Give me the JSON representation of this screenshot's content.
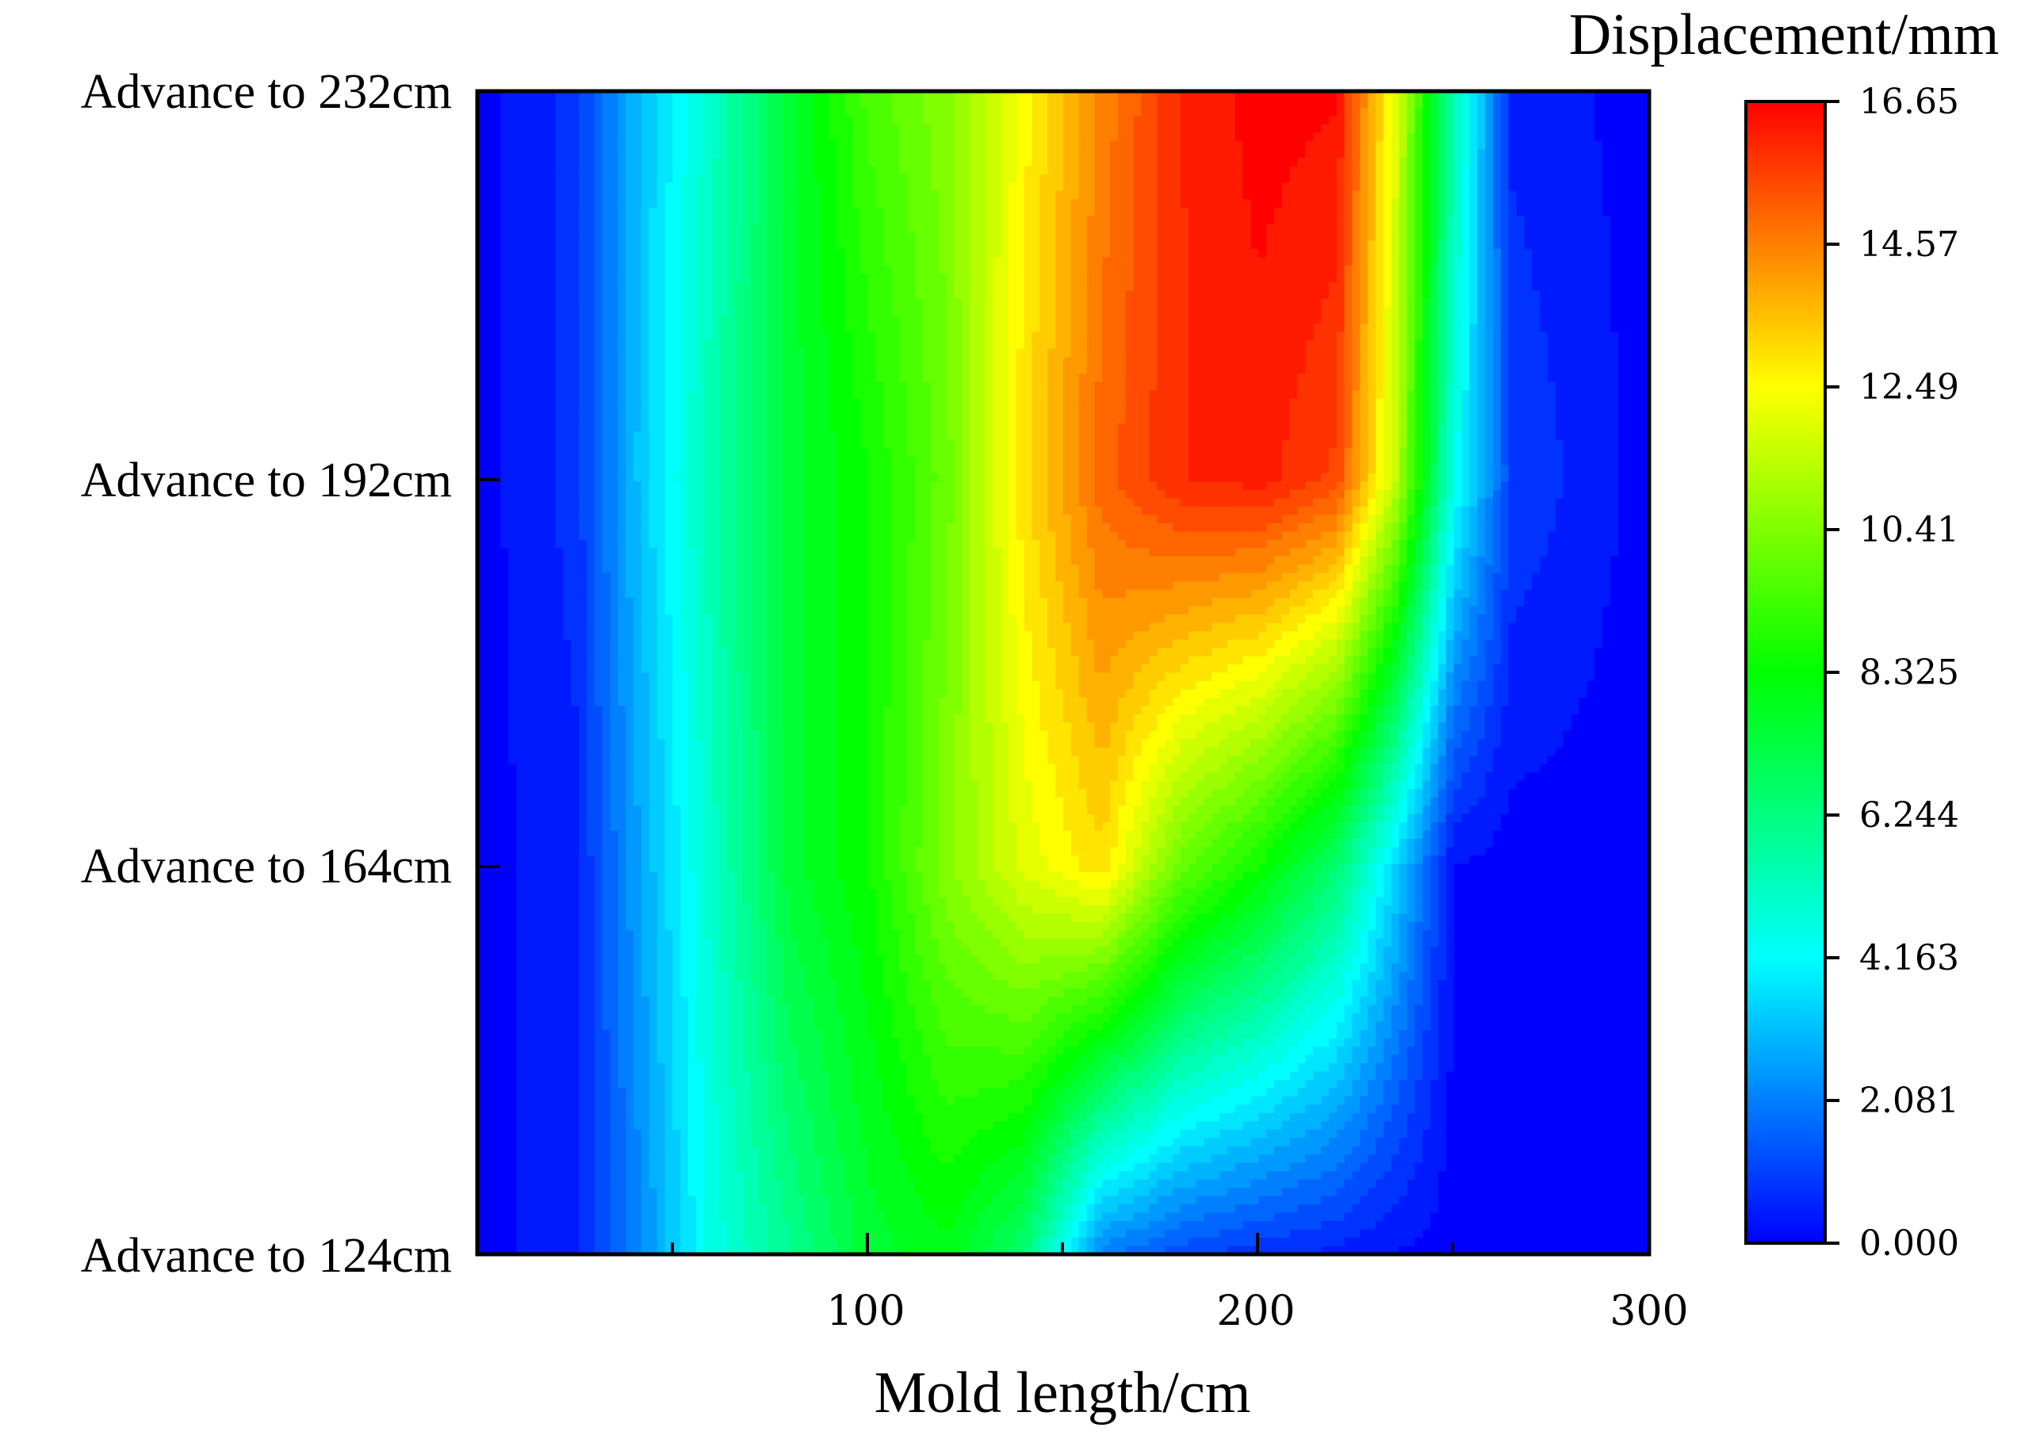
{
  "chart_data": {
    "type": "heatmap",
    "xlabel": "Mold length/cm",
    "xlim": [
      0,
      300
    ],
    "x_ticks": [
      "100",
      "200",
      "300"
    ],
    "y_ticks": [
      "Advance to 124cm",
      "Advance to 164cm",
      "Advance to 192cm",
      "Advance to 232cm"
    ],
    "colorbar": {
      "title": "Displacement/mm",
      "ticks": [
        "0.000",
        "2.081",
        "4.163",
        "6.244",
        "8.325",
        "10.41",
        "12.49",
        "14.57",
        "16.65"
      ],
      "range": [
        0,
        16.65
      ],
      "colors": [
        "#0000ff",
        "#00ffff",
        "#00ff00",
        "#ffff00",
        "#ff0000"
      ]
    },
    "x": [
      0,
      25,
      40,
      60,
      80,
      100,
      120,
      140,
      160,
      180,
      200,
      220,
      235,
      250,
      265,
      300
    ],
    "rows": [
      {
        "y": "Advance to 124cm",
        "values": [
          0.0,
          0.5,
          2.0,
          4.5,
          6.0,
          7.5,
          8.0,
          6.5,
          2.0,
          1.2,
          0.8,
          0.5,
          0.2,
          0.0,
          0.0,
          0.0
        ]
      },
      {
        "y": "Advance to 164cm",
        "values": [
          0.0,
          0.5,
          2.5,
          5.0,
          7.5,
          8.5,
          10.5,
          12.0,
          13.0,
          10.0,
          8.5,
          6.5,
          3.5,
          0.2,
          0.0,
          0.0
        ]
      },
      {
        "y": "Advance to 192cm",
        "values": [
          0.0,
          0.8,
          3.0,
          5.5,
          7.5,
          8.5,
          10.0,
          13.0,
          15.0,
          16.0,
          16.2,
          15.5,
          11.5,
          4.5,
          1.0,
          0.0
        ]
      },
      {
        "y": "Advance to 232cm",
        "values": [
          0.0,
          0.8,
          3.0,
          5.0,
          7.5,
          9.5,
          10.5,
          12.5,
          14.5,
          16.0,
          16.65,
          16.5,
          12.0,
          5.5,
          0.5,
          0.0
        ]
      }
    ]
  }
}
